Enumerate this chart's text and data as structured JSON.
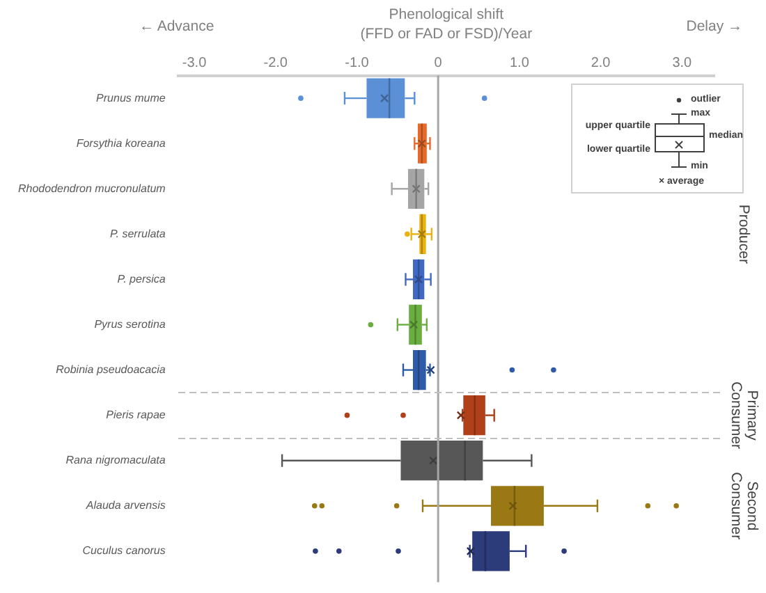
{
  "chart_data": {
    "type": "box",
    "orientation": "horizontal",
    "xlabel": "Phenological shift (FFD or FAD or FSD)/Year",
    "categories": [
      "Prunus mume",
      "Forsythia koreana",
      "Rhododendron mucronulatum",
      "P. serrulata",
      "P. persica",
      "Pyrus serotina",
      "Robinia pseudoacacia",
      "Pieris rapae",
      "Rana nigromaculata",
      "Alauda arvensis",
      "Cuculus canorus"
    ],
    "colors": [
      "#5b8fd6",
      "#e66a2c",
      "#a5a5a5",
      "#eab20f",
      "#4169c4",
      "#6aae3f",
      "#2e5ba8",
      "#b0401a",
      "#575757",
      "#9a7914",
      "#2c3b7a"
    ],
    "boxes": [
      {
        "low": -1.15,
        "q1": -0.88,
        "median": -0.6,
        "q3": -0.41,
        "high": -0.29,
        "mean": -0.66,
        "outliers": [
          -1.69,
          0.57
        ]
      },
      {
        "low": -0.29,
        "q1": -0.25,
        "median": -0.2,
        "q3": -0.14,
        "high": -0.1,
        "mean": -0.2
      },
      {
        "low": -0.57,
        "q1": -0.37,
        "median": -0.27,
        "q3": -0.17,
        "high": -0.12,
        "mean": -0.27
      },
      {
        "low": -0.33,
        "q1": -0.23,
        "median": -0.2,
        "q3": -0.15,
        "high": -0.08,
        "mean": -0.2,
        "outliers": [
          -0.38
        ]
      },
      {
        "low": -0.4,
        "q1": -0.31,
        "median": -0.24,
        "q3": -0.17,
        "high": -0.09,
        "mean": -0.24
      },
      {
        "low": -0.5,
        "q1": -0.36,
        "median": -0.28,
        "q3": -0.2,
        "high": -0.14,
        "mean": -0.3,
        "outliers": [
          -0.83
        ]
      },
      {
        "low": -0.43,
        "q1": -0.31,
        "median": -0.24,
        "q3": -0.15,
        "high": -0.1,
        "mean": -0.09,
        "outliers": [
          0.91,
          1.42
        ]
      },
      {
        "low": 0.3,
        "q1": 0.31,
        "median": 0.45,
        "q3": 0.58,
        "high": 0.69,
        "mean": 0.28,
        "outliers": [
          -1.12,
          -0.43
        ]
      },
      {
        "low": -1.92,
        "q1": -0.46,
        "median": 0.33,
        "q3": 0.55,
        "high": 1.15,
        "mean": -0.06
      },
      {
        "low": -0.19,
        "q1": 0.65,
        "median": 0.94,
        "q3": 1.3,
        "high": 1.96,
        "mean": 0.92,
        "outliers": [
          -1.52,
          -1.43,
          -0.51,
          2.58,
          2.93
        ]
      },
      {
        "low": 0.39,
        "q1": 0.42,
        "median": 0.58,
        "q3": 0.88,
        "high": 1.08,
        "mean": 0.4,
        "outliers": [
          -1.51,
          -1.22,
          -0.49,
          1.55
        ]
      }
    ],
    "xlim": [
      -3.2,
      3.4
    ],
    "xticks": [
      {
        "value": -3,
        "label": "-3.0"
      },
      {
        "value": -2,
        "label": "-2.0"
      },
      {
        "value": -1,
        "label": "-1.0"
      },
      0,
      {
        "value": 1,
        "label": "1.0"
      },
      {
        "value": 2,
        "label": "2.0"
      },
      {
        "value": 3,
        "label": "3.0"
      }
    ],
    "ref_lines": [
      {
        "axis": "x",
        "value": 0,
        "color": "#a6a6a6"
      }
    ],
    "annotations": [
      "← Advance",
      "Delay →",
      "Producer",
      "Primary Consumer",
      "Second Consumer",
      "outlier",
      "max",
      "upper quartile",
      "median",
      "lower quartile",
      "min",
      "× average"
    ]
  }
}
